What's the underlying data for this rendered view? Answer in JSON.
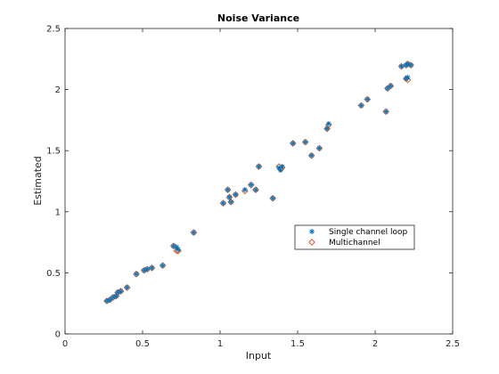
{
  "chart_data": {
    "type": "scatter",
    "title": "Noise Variance",
    "xlabel": "Input",
    "ylabel": "Estimated",
    "xlim": [
      0,
      2.5
    ],
    "ylim": [
      0,
      2.5
    ],
    "xticks": [
      "0",
      "0.5",
      "1",
      "1.5",
      "2",
      "2.5"
    ],
    "yticks": [
      "0",
      "0.5",
      "1",
      "1.5",
      "2",
      "2.5"
    ],
    "grid": false,
    "legend_position": "center-right",
    "series": [
      {
        "name": "Single channel loop",
        "marker": "asterisk",
        "color": "#0072BD",
        "points": [
          [
            0.27,
            0.27
          ],
          [
            0.29,
            0.28
          ],
          [
            0.31,
            0.3
          ],
          [
            0.33,
            0.31
          ],
          [
            0.34,
            0.34
          ],
          [
            0.36,
            0.35
          ],
          [
            0.4,
            0.38
          ],
          [
            0.46,
            0.49
          ],
          [
            0.51,
            0.52
          ],
          [
            0.53,
            0.53
          ],
          [
            0.56,
            0.54
          ],
          [
            0.63,
            0.56
          ],
          [
            0.7,
            0.72
          ],
          [
            0.72,
            0.71
          ],
          [
            0.73,
            0.69
          ],
          [
            0.83,
            0.83
          ],
          [
            1.02,
            1.07
          ],
          [
            1.05,
            1.18
          ],
          [
            1.06,
            1.12
          ],
          [
            1.07,
            1.08
          ],
          [
            1.1,
            1.14
          ],
          [
            1.16,
            1.18
          ],
          [
            1.2,
            1.22
          ],
          [
            1.23,
            1.18
          ],
          [
            1.25,
            1.37
          ],
          [
            1.34,
            1.11
          ],
          [
            1.38,
            1.36
          ],
          [
            1.39,
            1.34
          ],
          [
            1.4,
            1.37
          ],
          [
            1.47,
            1.56
          ],
          [
            1.55,
            1.57
          ],
          [
            1.59,
            1.46
          ],
          [
            1.64,
            1.52
          ],
          [
            1.69,
            1.68
          ],
          [
            1.7,
            1.72
          ],
          [
            1.91,
            1.87
          ],
          [
            1.95,
            1.92
          ],
          [
            2.07,
            1.82
          ],
          [
            2.08,
            2.01
          ],
          [
            2.1,
            2.03
          ],
          [
            2.17,
            2.19
          ],
          [
            2.2,
            2.2
          ],
          [
            2.21,
            2.21
          ],
          [
            2.21,
            2.1
          ],
          [
            2.23,
            2.2
          ],
          [
            2.2,
            2.09
          ]
        ]
      },
      {
        "name": "Multichannel",
        "marker": "diamond",
        "color": "#D95319",
        "points": [
          [
            0.27,
            0.27
          ],
          [
            0.29,
            0.28
          ],
          [
            0.31,
            0.3
          ],
          [
            0.33,
            0.31
          ],
          [
            0.34,
            0.34
          ],
          [
            0.36,
            0.35
          ],
          [
            0.4,
            0.38
          ],
          [
            0.46,
            0.49
          ],
          [
            0.51,
            0.52
          ],
          [
            0.53,
            0.53
          ],
          [
            0.56,
            0.54
          ],
          [
            0.63,
            0.56
          ],
          [
            0.7,
            0.72
          ],
          [
            0.72,
            0.68
          ],
          [
            0.73,
            0.68
          ],
          [
            0.83,
            0.83
          ],
          [
            1.02,
            1.07
          ],
          [
            1.05,
            1.18
          ],
          [
            1.06,
            1.12
          ],
          [
            1.07,
            1.08
          ],
          [
            1.1,
            1.14
          ],
          [
            1.16,
            1.17
          ],
          [
            1.2,
            1.22
          ],
          [
            1.23,
            1.18
          ],
          [
            1.25,
            1.37
          ],
          [
            1.34,
            1.11
          ],
          [
            1.38,
            1.37
          ],
          [
            1.39,
            1.35
          ],
          [
            1.4,
            1.36
          ],
          [
            1.47,
            1.56
          ],
          [
            1.55,
            1.57
          ],
          [
            1.59,
            1.46
          ],
          [
            1.64,
            1.52
          ],
          [
            1.69,
            1.68
          ],
          [
            1.7,
            1.71
          ],
          [
            1.91,
            1.87
          ],
          [
            1.95,
            1.92
          ],
          [
            2.07,
            1.82
          ],
          [
            2.08,
            2.01
          ],
          [
            2.1,
            2.03
          ],
          [
            2.17,
            2.19
          ],
          [
            2.2,
            2.2
          ],
          [
            2.21,
            2.21
          ],
          [
            2.21,
            2.08
          ],
          [
            2.23,
            2.2
          ],
          [
            2.2,
            2.09
          ]
        ]
      }
    ]
  }
}
